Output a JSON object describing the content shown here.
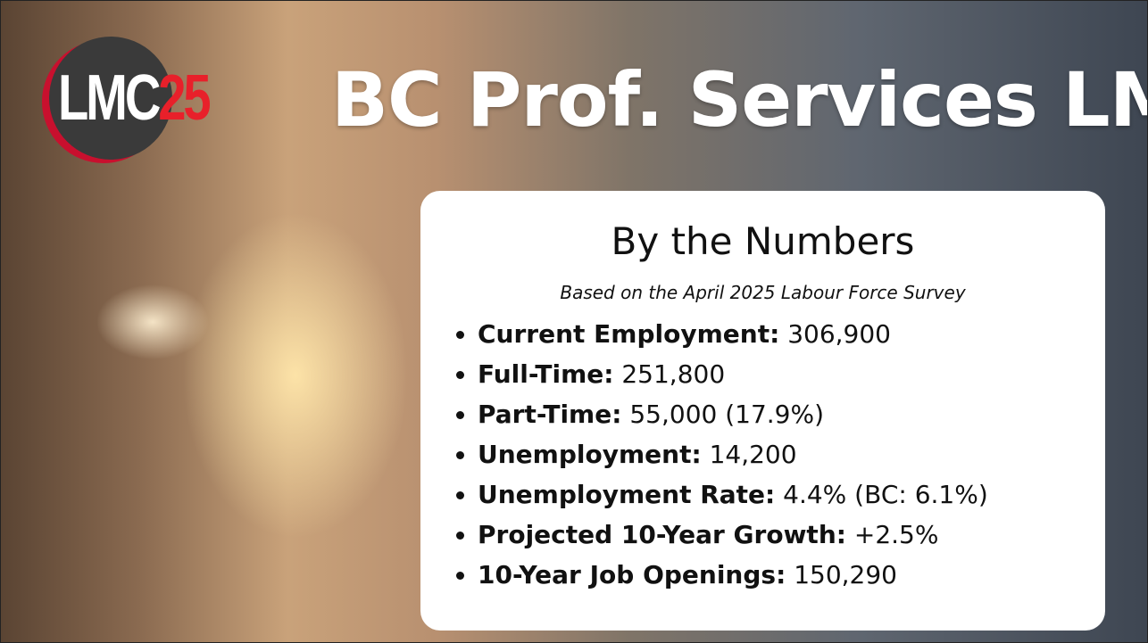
{
  "logo": {
    "text": "LMC",
    "number": "25"
  },
  "header": {
    "title": "BC Prof. Services LMI"
  },
  "card": {
    "title": "By the Numbers",
    "subtitle": "Based on the April 2025 Labour Force Survey",
    "items": [
      {
        "label": "Current Employment:",
        "value": "306,900"
      },
      {
        "label": "Full-Time:",
        "value": "251,800"
      },
      {
        "label": "Part-Time:",
        "value": "55,000 (17.9%)"
      },
      {
        "label": "Unemployment:",
        "value": "14,200"
      },
      {
        "label": "Unemployment Rate:",
        "value": "4.4% (BC: 6.1%)"
      },
      {
        "label": "Projected 10-Year Growth:",
        "value": "+2.5%"
      },
      {
        "label": "10-Year Job Openings:",
        "value": "150,290"
      }
    ]
  }
}
